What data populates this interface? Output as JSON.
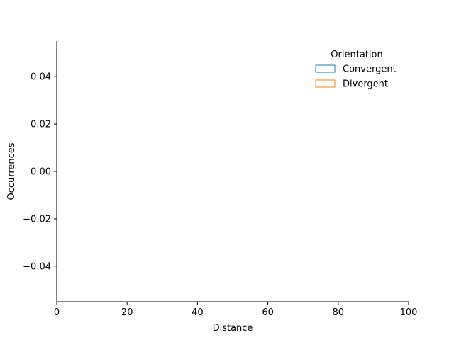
{
  "chart_data": {
    "type": "histogram",
    "xlabel": "Distance",
    "ylabel": "Occurrences",
    "xlim": [
      0,
      100
    ],
    "ylim": [
      -0.055,
      0.055
    ],
    "x_ticks": [
      0,
      20,
      40,
      60,
      80,
      100
    ],
    "y_ticks": [
      -0.04,
      -0.02,
      0.0,
      0.02,
      0.04
    ],
    "x_tick_labels": [
      "0",
      "20",
      "40",
      "60",
      "80",
      "100"
    ],
    "y_tick_labels": [
      "−0.04",
      "−0.02",
      "0.00",
      "0.02",
      "0.04"
    ],
    "legend": {
      "title": "Orientation",
      "placement": "upper right",
      "style": "unfilled-rectangle"
    },
    "series": [
      {
        "name": "Convergent",
        "color": "#1f77b4",
        "x_range": [
          0,
          1
        ],
        "values": [
          0
        ]
      },
      {
        "name": "Divergent",
        "color": "#ff7f0e",
        "x_range": [
          0,
          1
        ],
        "values": [
          0
        ]
      }
    ],
    "spines": {
      "top": false,
      "right": false
    }
  }
}
